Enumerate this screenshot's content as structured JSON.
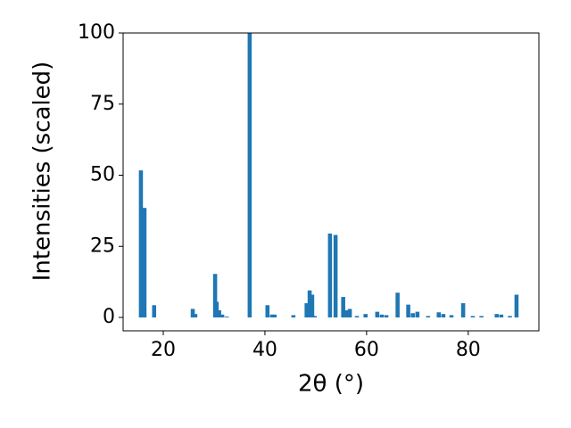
{
  "chart_data": {
    "type": "bar",
    "x_label": "2θ (°)",
    "y_label": "Intensities (scaled)",
    "color": "#1f77b4",
    "x": [
      15.6,
      16.3,
      18.2,
      25.8,
      26.3,
      30.2,
      30.5,
      31.0,
      31.6,
      32.5,
      37.0,
      40.5,
      41.4,
      41.9,
      45.6,
      48.2,
      48.8,
      49.3,
      49.8,
      52.8,
      53.9,
      55.4,
      56.0,
      56.7,
      58.1,
      59.8,
      62.1,
      63.0,
      63.9,
      66.1,
      68.2,
      69.1,
      70.0,
      72.1,
      74.2,
      75.1,
      76.7,
      79.0,
      80.9,
      82.6,
      85.6,
      86.5,
      88.2,
      89.5
    ],
    "values": [
      51.7,
      38.5,
      4.3,
      3,
      1.2,
      15.3,
      5.5,
      2.5,
      1,
      0.3,
      100,
      4.3,
      1,
      1,
      0.8,
      5,
      9.5,
      8,
      0.5,
      29.5,
      29,
      7.2,
      2.5,
      3,
      0.5,
      1.2,
      2,
      1,
      0.8,
      8.7,
      4.5,
      1.5,
      2,
      0.5,
      1.8,
      1.2,
      0.8,
      5,
      0.5,
      0.5,
      1.2,
      1,
      0.5,
      8
    ],
    "xlim": [
      12.1,
      93.9
    ],
    "ylim": [
      -4.7,
      100.0
    ],
    "xticks": [
      20,
      40,
      60,
      80
    ],
    "yticks": [
      0,
      25,
      50,
      75,
      100
    ]
  }
}
